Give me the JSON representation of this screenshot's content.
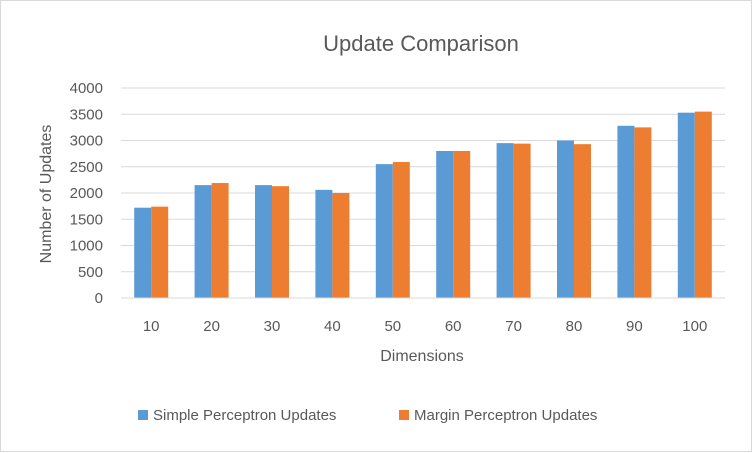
{
  "chart_data": {
    "type": "bar",
    "title": "Update Comparison",
    "xlabel": "Dimensions",
    "ylabel": "Number of Updates",
    "categories": [
      "10",
      "20",
      "30",
      "40",
      "50",
      "60",
      "70",
      "80",
      "90",
      "100"
    ],
    "series": [
      {
        "name": "Simple Perceptron Updates",
        "color": "#5b9bd5",
        "values": [
          1720,
          2150,
          2150,
          2060,
          2550,
          2800,
          2950,
          3000,
          3280,
          3530
        ]
      },
      {
        "name": "Margin Perceptron Updates",
        "color": "#ed7d31",
        "values": [
          1740,
          2190,
          2130,
          2000,
          2590,
          2800,
          2940,
          2930,
          3250,
          3550
        ]
      }
    ],
    "ylim": [
      0,
      4000
    ],
    "yticks": [
      0,
      500,
      1000,
      1500,
      2000,
      2500,
      3000,
      3500,
      4000
    ],
    "grid": true,
    "legend": "bottom"
  }
}
